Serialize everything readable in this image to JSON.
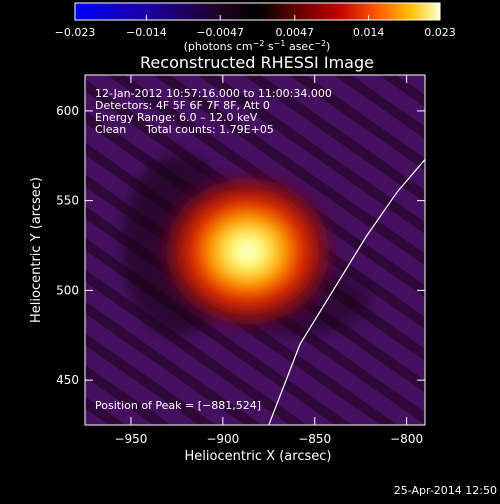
{
  "chart_data": {
    "type": "heatmap",
    "title": "Reconstructed RHESSI Image",
    "xlabel": "Heliocentric X (arcsec)",
    "ylabel": "Heliocentric Y (arcsec)",
    "xlim": [
      -975,
      -790
    ],
    "ylim": [
      425,
      620
    ],
    "x_ticks": [
      -950,
      -900,
      -850,
      -800
    ],
    "x_tick_labels": [
      "−950",
      "−900",
      "−850",
      "−800"
    ],
    "y_ticks": [
      450,
      500,
      550,
      600
    ],
    "y_tick_labels": [
      "450",
      "500",
      "550",
      "600"
    ],
    "colorbar": {
      "min": -0.023,
      "max": 0.023,
      "ticks": [
        -0.023,
        -0.014,
        -0.0047,
        0.0047,
        0.014,
        0.023
      ],
      "tick_labels": [
        "−0.023",
        "−0.014",
        "−0.0047",
        "0.0047",
        "0.014",
        "0.023"
      ],
      "unit_main": "(photons cm",
      "unit_exp1": "−2",
      "unit_mid1": " s",
      "unit_exp2": "−1",
      "unit_mid2": " asec",
      "unit_exp3": "−2",
      "unit_end": ")"
    },
    "source_peak": [
      -881,
      524
    ],
    "limb_curve": [
      [
        -875,
        425
      ],
      [
        -858,
        470
      ],
      [
        -840,
        500
      ],
      [
        -822,
        530
      ],
      [
        -805,
        555
      ],
      [
        -790,
        573
      ]
    ],
    "annotations": {
      "time": "12-Jan-2012 10:57:16.000 to 11:00:34.000",
      "detectors": "Detectors: 4F 5F 6F 7F 8F, Att 0",
      "energy": "Energy Range: 6.0 – 12.0 keV",
      "clean": "Clean",
      "counts": "Total counts: 1.79E+05",
      "peak": "Position of Peak = [−881,524]"
    },
    "footer": "25-Apr-2014 12:50"
  }
}
